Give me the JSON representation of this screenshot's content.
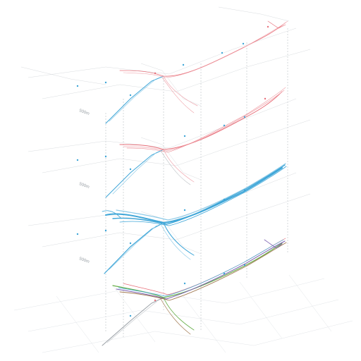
{
  "diagram": {
    "layer_labels": [
      "500m",
      "500m",
      "500m"
    ],
    "palette": {
      "red": "#e8707a",
      "pink": "#f0a8b0",
      "blue": "#3ea6d8",
      "lightblue": "#8fcbe8",
      "grey": "#c9cdd1",
      "darkgrey": "#9aa0a6",
      "green": "#6ab04c",
      "purple": "#7b5fb0",
      "brown": "#a07850"
    }
  }
}
